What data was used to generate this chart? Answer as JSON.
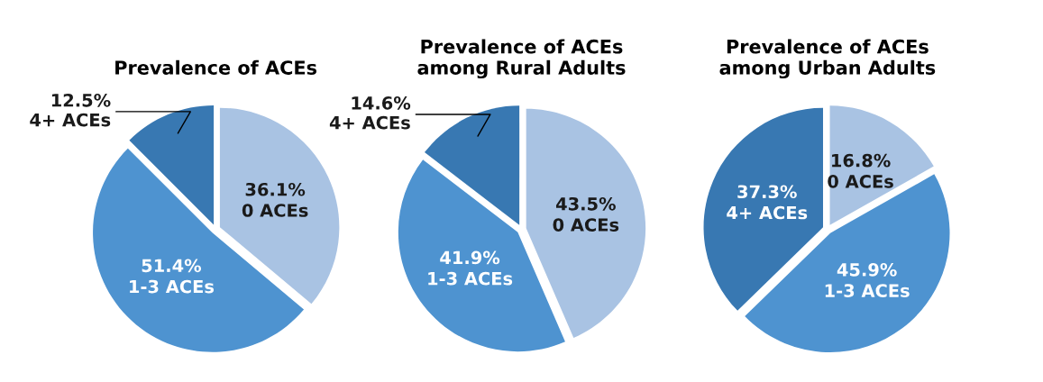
{
  "chart_data": [
    {
      "type": "pie",
      "title": "Prevalence of ACEs",
      "categories": [
        "0 ACEs",
        "1-3 ACEs",
        "4+ ACEs"
      ],
      "values": [
        36.1,
        51.4,
        12.5
      ],
      "value_labels": [
        "36.1%",
        "51.4%",
        "12.5%"
      ],
      "colors": [
        "#a9c3e3",
        "#4e93d0",
        "#3878b2"
      ]
    },
    {
      "type": "pie",
      "title": "Prevalence of ACEs\namong Rural Adults",
      "categories": [
        "0 ACEs",
        "1-3 ACEs",
        "4+ ACEs"
      ],
      "values": [
        43.5,
        41.9,
        14.6
      ],
      "value_labels": [
        "43.5%",
        "41.9%",
        "14.6%"
      ],
      "colors": [
        "#a9c3e3",
        "#4e93d0",
        "#3878b2"
      ]
    },
    {
      "type": "pie",
      "title": "Prevalence of ACEs\namong Urban Adults",
      "categories": [
        "0 ACEs",
        "1-3 ACEs",
        "4+ ACEs"
      ],
      "values": [
        16.8,
        45.9,
        37.3
      ],
      "value_labels": [
        "16.8%",
        "45.9%",
        "37.3%"
      ],
      "colors": [
        "#a9c3e3",
        "#4e93d0",
        "#3878b2"
      ]
    }
  ]
}
